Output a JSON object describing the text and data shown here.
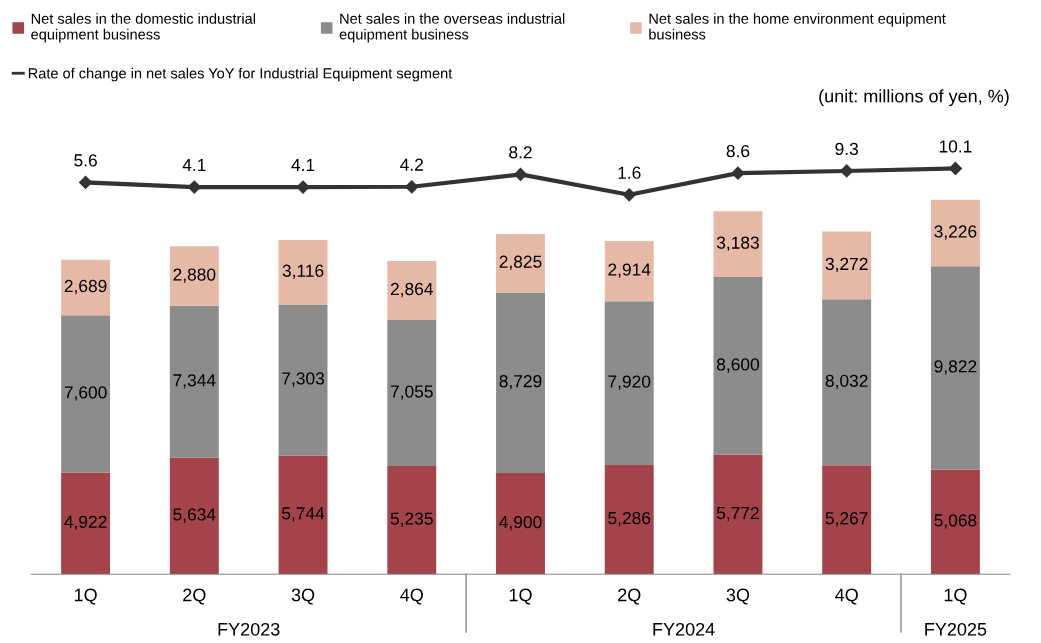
{
  "chart_data": [
    {
      "type": "bar",
      "stacked": true,
      "legend": "top",
      "grid": false,
      "tick_labels": "x",
      "categories": [
        "1Q",
        "2Q",
        "3Q",
        "4Q",
        "1Q",
        "2Q",
        "3Q",
        "4Q",
        "1Q"
      ],
      "annotations": [
        "(unit: millions of yen, %)",
        "FY2023",
        "FY2024",
        "FY2025"
      ],
      "series": [
        {
          "name": "Net sales in the domestic industrial equipment business",
          "color": "#a5434a",
          "values": [
            4922,
            5634,
            5744,
            5235,
            4900,
            5286,
            5772,
            5267,
            5068
          ],
          "value_labels": [
            "4,922",
            "5,634",
            "5,744",
            "5,235",
            "4,900",
            "5,286",
            "5,772",
            "5,267",
            "5,068"
          ]
        },
        {
          "name": "Net sales in the overseas industrial equipment business",
          "color": "#8c8c8c",
          "values": [
            7600,
            7344,
            7303,
            7055,
            8729,
            7920,
            8600,
            8032,
            9822
          ],
          "value_labels": [
            "7,600",
            "7,344",
            "7,303",
            "7,055",
            "8,729",
            "7,920",
            "8,600",
            "8,032",
            "9,822"
          ]
        },
        {
          "name": "Net sales in the home environment equipment business",
          "color": "#e6b9a6",
          "values": [
            2689,
            2880,
            3116,
            2864,
            2825,
            2914,
            3183,
            3272,
            3226
          ],
          "value_labels": [
            "2,689",
            "2,880",
            "3,116",
            "2,864",
            "2,825",
            "2,914",
            "3,183",
            "3,272",
            "3,226"
          ]
        }
      ]
    },
    {
      "type": "line",
      "legend": "top",
      "tick_labels": false,
      "data_labels": true,
      "marker": "diamond",
      "line_style": "solid",
      "categories": [
        null,
        null,
        null,
        null,
        null,
        null,
        null,
        null,
        null
      ],
      "series": [
        {
          "name": "Rate of change in net sales YoY for Industrial Equipment segment",
          "color": "#333333",
          "values": [
            5.6,
            4.1,
            4.1,
            4.2,
            8.2,
            1.6,
            8.6,
            9.3,
            10.1
          ]
        }
      ]
    }
  ]
}
